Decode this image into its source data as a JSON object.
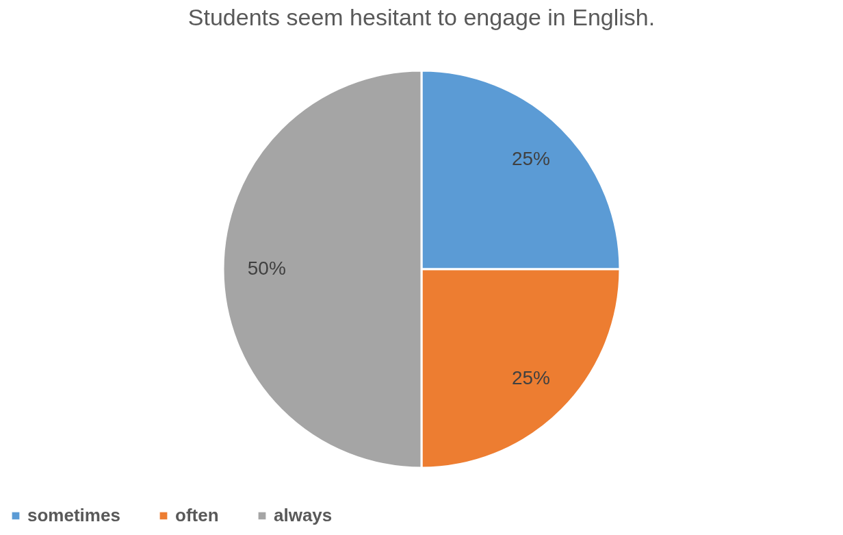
{
  "chart_data": {
    "type": "pie",
    "title": "Students seem hesitant to engage in English.",
    "categories": [
      "sometimes",
      "often",
      "always"
    ],
    "values": [
      25,
      25,
      50
    ],
    "colors": [
      "#5b9bd5",
      "#ed7d31",
      "#a5a5a5"
    ],
    "value_labels": [
      "25%",
      "25%",
      "50%"
    ],
    "legend": "bottom"
  }
}
